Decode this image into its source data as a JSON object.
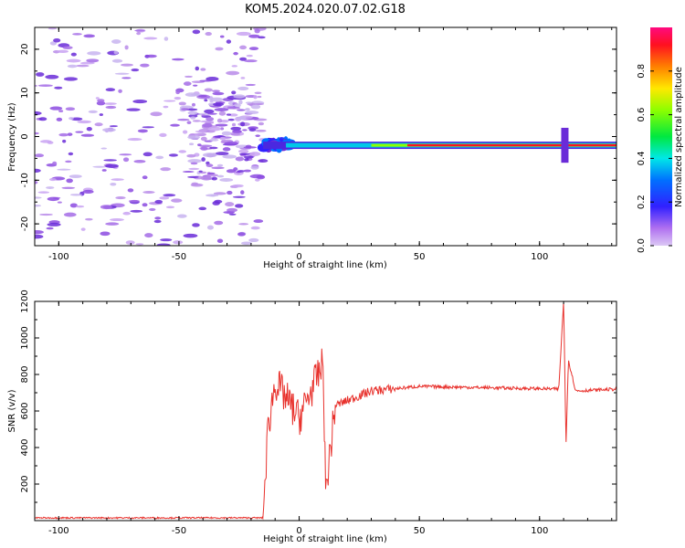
{
  "title": "KOM5.2024.020.07.02.G18",
  "chart_data": [
    {
      "type": "heatmap",
      "xlabel": "Height of straight line (km)",
      "ylabel": "Frequency (Hz)",
      "xlim": [
        -110,
        132
      ],
      "ylim": [
        -25,
        25
      ],
      "xticks": [
        -100,
        -50,
        0,
        50,
        100
      ],
      "yticks": [
        -20,
        -10,
        0,
        10,
        20
      ],
      "colorbar": {
        "label": "Normalized spectral amplitude",
        "range": [
          0,
          1
        ],
        "ticks": [
          "0.0",
          "0.2",
          "0.4",
          "0.6",
          "0.8"
        ]
      },
      "signal_band": {
        "x_start": -15,
        "x_end": 132,
        "freq_hz": -2,
        "strength": 0.9
      },
      "noise_region": {
        "x_start": -110,
        "x_end": -15,
        "freq_range": [
          -25,
          25
        ]
      }
    },
    {
      "type": "line",
      "xlabel": "Height of straight line (km)",
      "ylabel": "SNR (v/v)",
      "xlim": [
        -110,
        132
      ],
      "ylim": [
        0,
        1200
      ],
      "xticks": [
        -100,
        -50,
        0,
        50,
        100
      ],
      "yticks": [
        200,
        400,
        600,
        800,
        1000,
        1200
      ],
      "color": "#e8322d",
      "keypoints": [
        {
          "x": -110,
          "y": 15
        },
        {
          "x": -15,
          "y": 15
        },
        {
          "x": -13,
          "y": 500
        },
        {
          "x": -10,
          "y": 760
        },
        {
          "x": 0,
          "y": 560
        },
        {
          "x": 10,
          "y": 860
        },
        {
          "x": 11,
          "y": 150
        },
        {
          "x": 15,
          "y": 630
        },
        {
          "x": 30,
          "y": 710
        },
        {
          "x": 50,
          "y": 735
        },
        {
          "x": 108,
          "y": 720
        },
        {
          "x": 110,
          "y": 1200
        },
        {
          "x": 111,
          "y": 420
        },
        {
          "x": 112,
          "y": 880
        },
        {
          "x": 115,
          "y": 710
        },
        {
          "x": 132,
          "y": 720
        }
      ]
    }
  ]
}
